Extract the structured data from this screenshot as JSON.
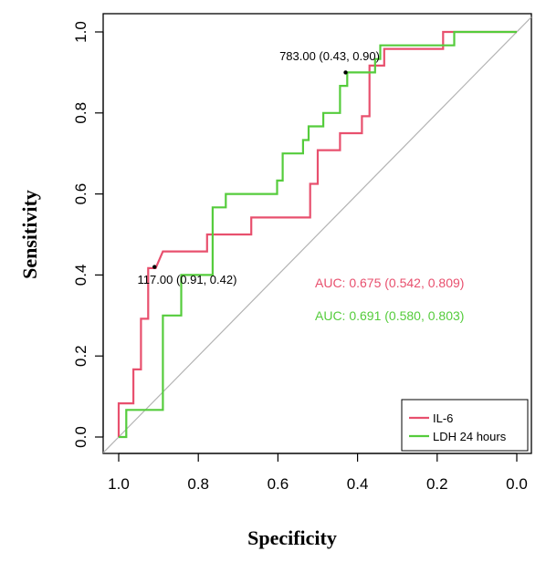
{
  "chart_data": {
    "type": "line",
    "xlabel": "Specificity",
    "ylabel": "Sensitivity",
    "xlim": [
      1.0,
      0.0
    ],
    "ylim": [
      0.0,
      1.0
    ],
    "x_reversed": true,
    "x_ticks": [
      "1.0",
      "0.8",
      "0.6",
      "0.4",
      "0.2",
      "0.0"
    ],
    "y_ticks": [
      "0.0",
      "0.2",
      "0.4",
      "0.6",
      "0.8",
      "1.0"
    ],
    "grid": false,
    "legend_position": "bottom-right",
    "diagonal_reference": true,
    "series": [
      {
        "name": "IL-6",
        "color": "#e8506e",
        "points": [
          [
            1.0,
            0.0
          ],
          [
            1.0,
            0.083
          ],
          [
            0.963,
            0.083
          ],
          [
            0.963,
            0.167
          ],
          [
            0.944,
            0.167
          ],
          [
            0.944,
            0.292
          ],
          [
            0.926,
            0.292
          ],
          [
            0.926,
            0.417
          ],
          [
            0.907,
            0.417
          ],
          [
            0.907,
            0.417
          ],
          [
            0.889,
            0.458
          ],
          [
            0.778,
            0.458
          ],
          [
            0.778,
            0.5
          ],
          [
            0.667,
            0.5
          ],
          [
            0.667,
            0.542
          ],
          [
            0.519,
            0.542
          ],
          [
            0.519,
            0.625
          ],
          [
            0.5,
            0.625
          ],
          [
            0.5,
            0.708
          ],
          [
            0.444,
            0.708
          ],
          [
            0.444,
            0.75
          ],
          [
            0.389,
            0.75
          ],
          [
            0.389,
            0.792
          ],
          [
            0.37,
            0.792
          ],
          [
            0.37,
            0.917
          ],
          [
            0.333,
            0.917
          ],
          [
            0.333,
            0.958
          ],
          [
            0.185,
            0.958
          ],
          [
            0.185,
            1.0
          ],
          [
            0.0,
            1.0
          ]
        ]
      },
      {
        "name": "LDH 24 hours",
        "color": "#55cc3c",
        "points": [
          [
            1.0,
            0.0
          ],
          [
            0.981,
            0.0
          ],
          [
            0.981,
            0.067
          ],
          [
            0.889,
            0.067
          ],
          [
            0.889,
            0.3
          ],
          [
            0.843,
            0.3
          ],
          [
            0.843,
            0.4
          ],
          [
            0.764,
            0.4
          ],
          [
            0.764,
            0.567
          ],
          [
            0.731,
            0.567
          ],
          [
            0.731,
            0.6
          ],
          [
            0.602,
            0.6
          ],
          [
            0.602,
            0.633
          ],
          [
            0.588,
            0.633
          ],
          [
            0.588,
            0.7
          ],
          [
            0.537,
            0.7
          ],
          [
            0.537,
            0.733
          ],
          [
            0.523,
            0.733
          ],
          [
            0.523,
            0.767
          ],
          [
            0.486,
            0.767
          ],
          [
            0.486,
            0.8
          ],
          [
            0.444,
            0.8
          ],
          [
            0.444,
            0.867
          ],
          [
            0.426,
            0.867
          ],
          [
            0.426,
            0.9
          ],
          [
            0.356,
            0.9
          ],
          [
            0.356,
            0.933
          ],
          [
            0.343,
            0.933
          ],
          [
            0.343,
            0.967
          ],
          [
            0.157,
            0.967
          ],
          [
            0.157,
            1.0
          ],
          [
            0.0,
            1.0
          ]
        ]
      }
    ],
    "thresholds": [
      {
        "label": "783.00 (0.43, 0.90)",
        "x": 0.43,
        "y": 0.9
      },
      {
        "label": "117.00 (0.91, 0.42)",
        "x": 0.91,
        "y": 0.42
      }
    ],
    "auc": [
      {
        "label": "AUC: 0.675 (0.542, 0.809)",
        "color": "#e8506e"
      },
      {
        "label": "AUC: 0.691 (0.580, 0.803)",
        "color": "#55cc3c"
      }
    ]
  }
}
